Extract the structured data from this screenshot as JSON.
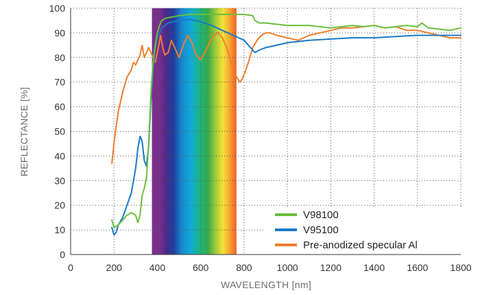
{
  "chart_data": {
    "type": "line",
    "title": "",
    "xlabel": "WAVELENGTH [nm]",
    "ylabel": "REFLECTANCE [%]",
    "xlim": [
      0,
      1800
    ],
    "ylim": [
      0,
      100
    ],
    "xticks": [
      0,
      200,
      400,
      600,
      800,
      1000,
      1200,
      1400,
      1600,
      1800
    ],
    "yticks": [
      0,
      10,
      20,
      30,
      40,
      50,
      60,
      70,
      80,
      90,
      100
    ],
    "grid": "dotted",
    "legend_position": "bottom-right",
    "visible_spectrum_band": {
      "start_nm": 375,
      "end_nm": 765
    },
    "series": [
      {
        "name": "V98100",
        "color": "#6abf3c",
        "x": [
          190,
          200,
          220,
          240,
          260,
          280,
          300,
          310,
          320,
          330,
          340,
          350,
          360,
          370,
          380,
          390,
          400,
          410,
          420,
          440,
          470,
          500,
          550,
          600,
          650,
          700,
          750,
          800,
          840,
          850,
          870,
          900,
          1000,
          1100,
          1200,
          1300,
          1350,
          1400,
          1450,
          1500,
          1550,
          1600,
          1620,
          1650,
          1700,
          1750,
          1800
        ],
        "y": [
          14,
          11,
          12,
          14,
          16,
          17,
          16,
          13,
          16,
          24,
          27,
          31,
          45,
          65,
          78,
          85,
          90,
          93,
          95,
          96,
          96.5,
          97,
          97.5,
          97.5,
          97.5,
          97.5,
          97.5,
          97.5,
          97,
          95,
          94,
          94,
          93,
          93,
          92,
          93,
          92.5,
          93,
          92,
          92.5,
          93,
          92.5,
          94,
          92,
          91.5,
          91,
          92
        ]
      },
      {
        "name": "V95100",
        "color": "#1a78c8",
        "x": [
          190,
          200,
          210,
          220,
          240,
          260,
          280,
          300,
          310,
          320,
          330,
          340,
          350,
          360,
          370,
          380,
          390,
          400,
          420,
          450,
          500,
          550,
          600,
          650,
          700,
          750,
          800,
          830,
          850,
          870,
          900,
          950,
          1000,
          1100,
          1200,
          1300,
          1400,
          1500,
          1600,
          1700,
          1800
        ],
        "y": [
          11,
          8,
          9,
          12,
          15,
          20,
          25,
          35,
          43,
          48,
          46,
          38,
          36,
          44,
          62,
          75,
          83,
          88,
          92,
          94,
          95,
          95.5,
          94.5,
          93,
          91,
          89,
          87,
          84,
          82,
          83,
          84,
          85,
          86,
          87,
          87.5,
          88,
          88,
          88.5,
          89,
          89,
          89
        ]
      },
      {
        "name": "Pre-anodized specular Al",
        "color": "#f07d2c",
        "x": [
          190,
          200,
          210,
          220,
          240,
          260,
          280,
          290,
          300,
          320,
          330,
          340,
          350,
          360,
          370,
          380,
          390,
          400,
          415,
          425,
          435,
          450,
          465,
          480,
          500,
          520,
          540,
          560,
          580,
          600,
          620,
          640,
          660,
          680,
          700,
          720,
          740,
          760,
          780,
          790,
          800,
          820,
          840,
          860,
          880,
          900,
          920,
          950,
          1000,
          1050,
          1100,
          1150,
          1200,
          1250,
          1300,
          1350,
          1400,
          1450,
          1500,
          1550,
          1600,
          1650,
          1700,
          1750,
          1800
        ],
        "y": [
          37,
          45,
          52,
          58,
          66,
          72,
          75,
          78,
          77,
          81,
          85,
          80,
          82,
          84,
          82,
          80,
          78,
          82,
          89,
          84,
          81,
          82,
          87,
          84,
          80,
          85,
          89,
          86,
          81,
          79,
          82,
          86,
          89,
          90,
          88,
          84,
          78,
          73,
          70,
          71,
          73,
          78,
          84,
          87,
          89,
          90,
          90,
          89,
          88,
          87,
          89,
          90,
          91,
          92,
          92,
          92.5,
          93,
          92,
          92.5,
          91,
          91,
          90,
          89,
          88,
          88
        ]
      }
    ]
  }
}
